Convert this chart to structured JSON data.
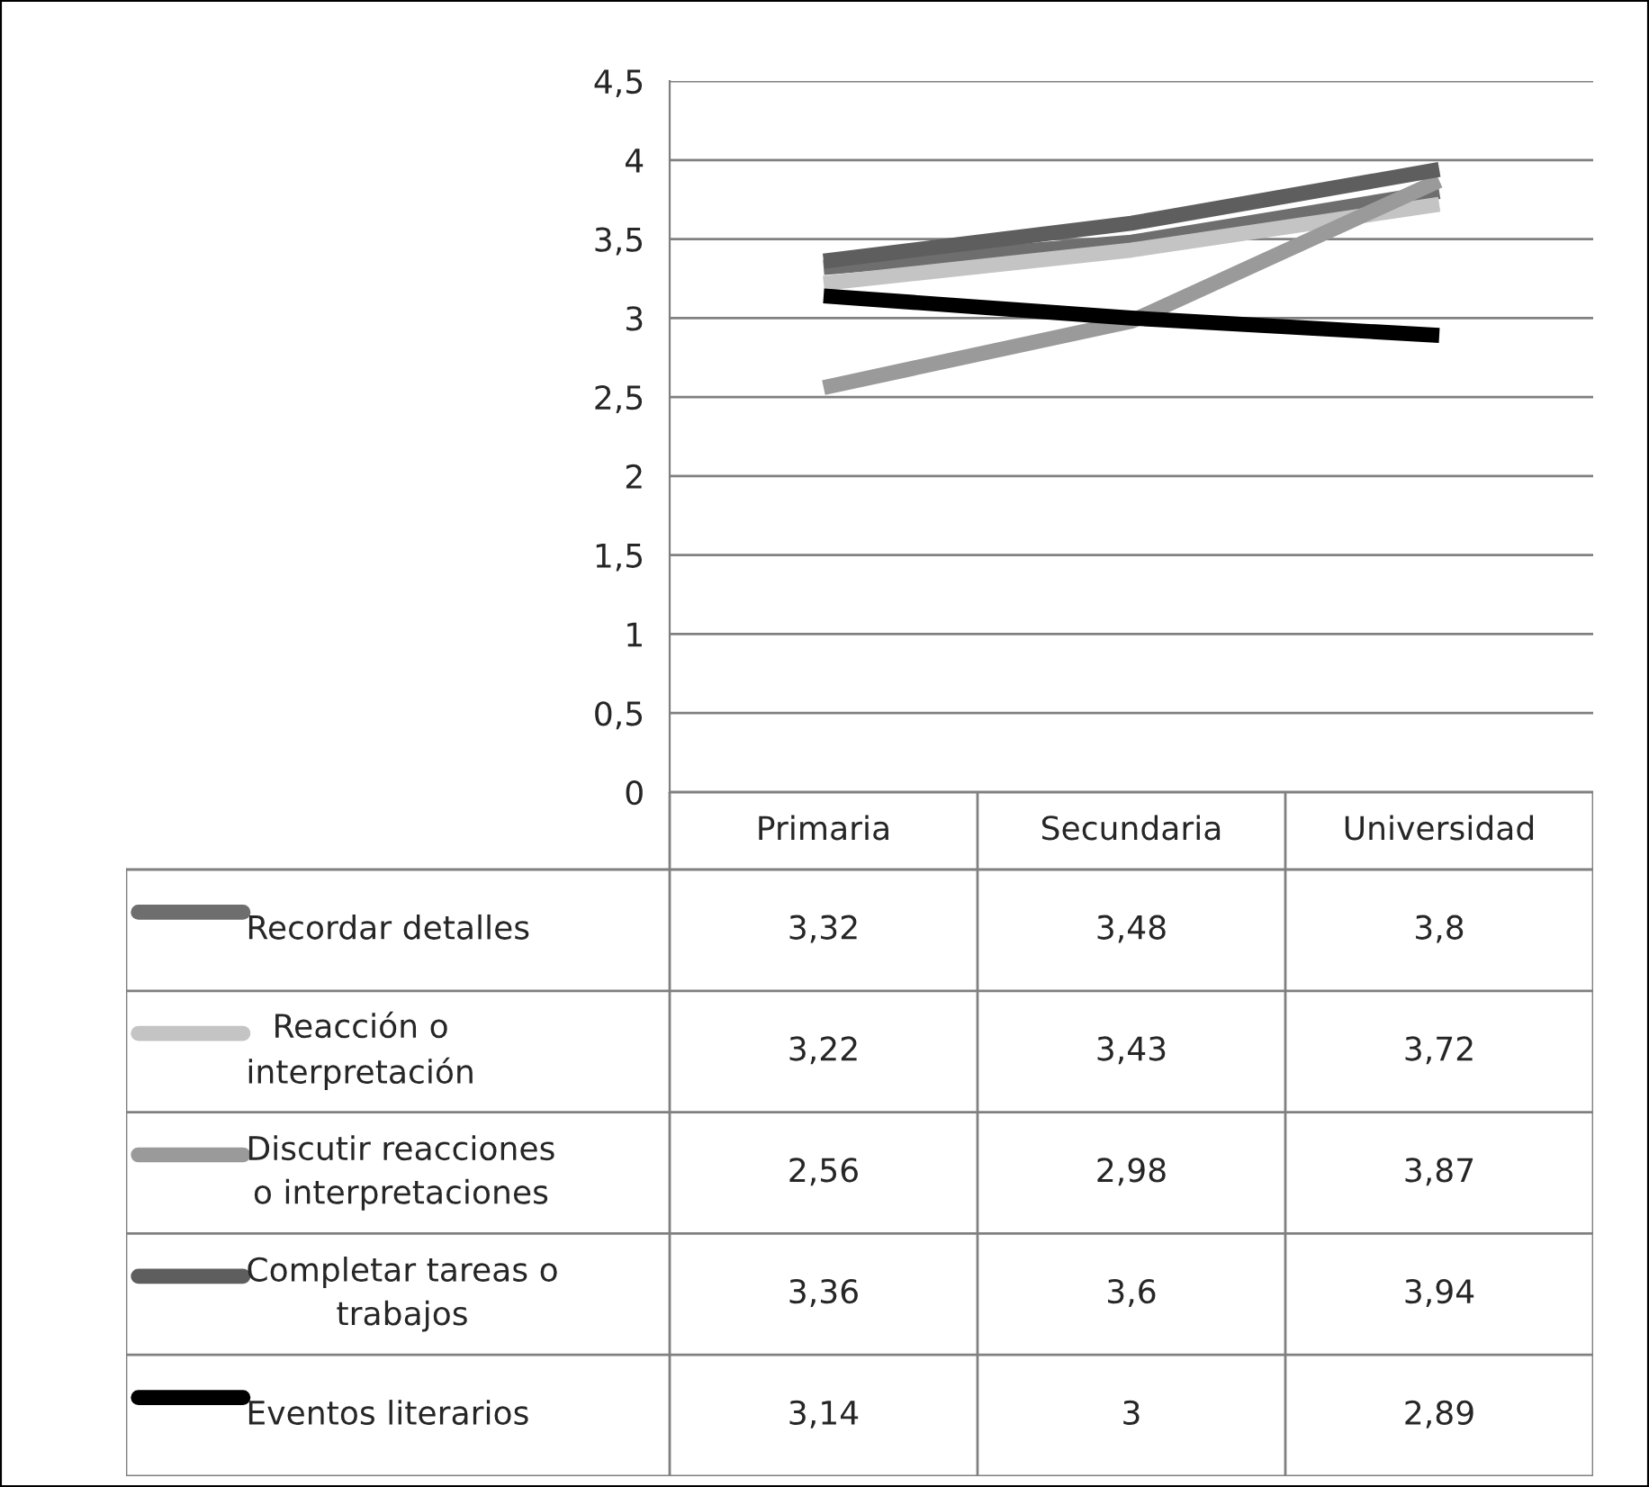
{
  "chart_data": {
    "type": "line",
    "categories": [
      "Primaria",
      "Secundaria",
      "Universidad"
    ],
    "series": [
      {
        "name": "Recordar detalles",
        "color": "#6e6e6e",
        "values": [
          3.32,
          3.48,
          3.8
        ],
        "value_labels": [
          "3,32",
          "3,48",
          "3,8"
        ]
      },
      {
        "name": "Reacción o interpretación",
        "color": "#c4c4c4",
        "values": [
          3.22,
          3.43,
          3.72
        ],
        "value_labels": [
          "3,22",
          "3,43",
          "3,72"
        ]
      },
      {
        "name": "Discutir reacciones o interpretaciones",
        "color": "#9a9a9a",
        "values": [
          2.56,
          2.98,
          3.87
        ],
        "value_labels": [
          "2,56",
          "2,98",
          "3,87"
        ]
      },
      {
        "name": "Completar tareas o trabajos",
        "color": "#5e5e5e",
        "values": [
          3.36,
          3.6,
          3.94
        ],
        "value_labels": [
          "3,36",
          "3,6",
          "3,94"
        ]
      },
      {
        "name": "Eventos literarios",
        "color": "#000000",
        "values": [
          3.14,
          3,
          2.89
        ],
        "value_labels": [
          "3,14",
          "3",
          "2,89"
        ]
      }
    ],
    "ylim": [
      0,
      4.5
    ],
    "yticks": [
      0,
      {
        "value": 0.5,
        "label": "0,5"
      },
      1,
      {
        "value": 1.5,
        "label": "1,5"
      },
      2,
      {
        "value": 2.5,
        "label": "2,5"
      },
      3,
      {
        "value": 3.5,
        "label": "3,5"
      },
      4,
      {
        "value": 4.5,
        "label": "4,5"
      }
    ],
    "grid": "y",
    "legend": "bottom",
    "marker": "none",
    "line_style": "solid"
  }
}
